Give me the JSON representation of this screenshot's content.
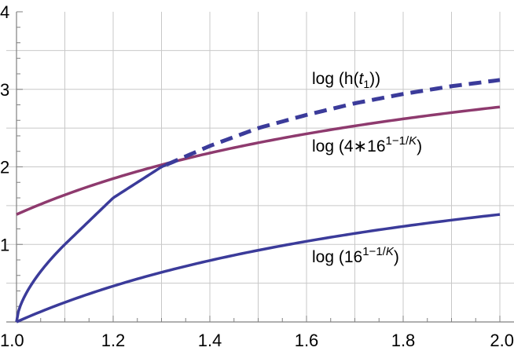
{
  "chart_data": {
    "type": "line",
    "title": "",
    "xlabel": "",
    "ylabel": "",
    "xlim": [
      1.0,
      2.0
    ],
    "ylim": [
      0,
      4
    ],
    "grid": true,
    "x_ticks": [
      "1.0",
      "1.2",
      "1.4",
      "1.6",
      "1.8",
      "2.0"
    ],
    "y_ticks": [
      "1",
      "2",
      "3",
      "4"
    ],
    "x": [
      1.0,
      1.1,
      1.2,
      1.3,
      1.4,
      1.5,
      1.6,
      1.7,
      1.8,
      1.9,
      2.0
    ],
    "series": [
      {
        "name": "log (h(t1))",
        "color": "#3b3b9a",
        "style": "solid until intersection (~1.31), dashed after",
        "values": [
          0.0,
          1.0,
          1.6,
          2.0,
          2.27,
          2.5,
          2.67,
          2.82,
          2.94,
          3.04,
          3.12
        ]
      },
      {
        "name": "log (4*16^(1-1/K))",
        "color": "#8e3a6e",
        "style": "solid",
        "values": [
          1.386,
          1.638,
          1.848,
          2.026,
          2.178,
          2.31,
          2.426,
          2.528,
          2.618,
          2.7,
          2.773
        ]
      },
      {
        "name": "log (16^(1-1/K))",
        "color": "#3b3b9a",
        "style": "solid",
        "values": [
          0.0,
          0.252,
          0.462,
          0.64,
          0.792,
          0.924,
          1.04,
          1.142,
          1.232,
          1.313,
          1.386
        ]
      }
    ],
    "annotations": [
      {
        "text": "log (h(t₁))",
        "x": 1.62,
        "y": 3.3
      },
      {
        "text": "log (4∗16^(1−1/K))",
        "x": 1.62,
        "y": 2.2
      },
      {
        "text": "log (16^(1−1/K))",
        "x": 1.62,
        "y": 0.8
      }
    ]
  },
  "labels": {
    "h": {
      "prefix": "log (h(",
      "var": "t",
      "sub": "1",
      "suffix": "))"
    },
    "four16": {
      "prefix": "log (4",
      "op": "∗",
      "base": "16",
      "exp_a": "1−1/",
      "exp_k": "K",
      "suffix": ")"
    },
    "sixteen": {
      "prefix": "log (",
      "base": "16",
      "exp_a": "1−1/",
      "exp_k": "K",
      "suffix": ")"
    }
  }
}
